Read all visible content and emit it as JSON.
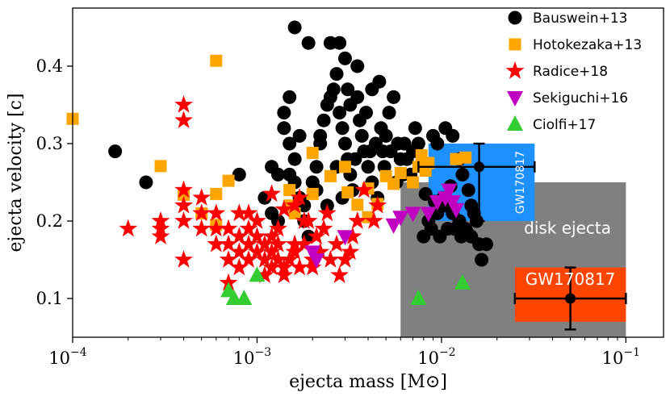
{
  "chart_data": {
    "type": "scatter",
    "title": "",
    "xlabel": "ejecta mass [M⊙]",
    "ylabel": "ejecta velocity [c]",
    "xscale": "log",
    "xlim": [
      0.0001,
      0.16
    ],
    "ylim": [
      0.05,
      0.475
    ],
    "x_ticks": [
      {
        "value": 0.0001,
        "base": "10",
        "exp": "−4"
      },
      {
        "value": 0.001,
        "base": "10",
        "exp": "−3"
      },
      {
        "value": 0.01,
        "base": "10",
        "exp": "−2"
      },
      {
        "value": 0.1,
        "base": "10",
        "exp": "−1"
      }
    ],
    "y_ticks": [
      {
        "value": 0.1,
        "label": "0.1"
      },
      {
        "value": 0.2,
        "label": "0.2"
      },
      {
        "value": 0.3,
        "label": "0.3"
      },
      {
        "value": 0.4,
        "label": "0.4"
      }
    ],
    "grid": false,
    "legend_position": "top-right",
    "regions": [
      {
        "label": "disk ejecta",
        "x0": 0.006,
        "x1": 0.1,
        "y0": 0.05,
        "y1": 0.25,
        "color": "#808080"
      },
      {
        "label": "GW170817",
        "x0": 0.0085,
        "x1": 0.032,
        "y0": 0.2,
        "y1": 0.3,
        "color": "#1e90ff",
        "label_rotated": true
      },
      {
        "label": "GW170817",
        "x0": 0.025,
        "x1": 0.1,
        "y0": 0.07,
        "y1": 0.14,
        "color": "#ff4500"
      }
    ],
    "error_points": [
      {
        "x": 0.016,
        "y": 0.27,
        "xerr": [
          0.0075,
          0.032
        ],
        "yerr": [
          0.2,
          0.3
        ]
      },
      {
        "x": 0.05,
        "y": 0.1,
        "xerr": [
          0.025,
          0.1
        ],
        "yerr": [
          0.06,
          0.14
        ]
      }
    ],
    "series": [
      {
        "name": "Bauswein+13",
        "marker": "circle",
        "color": "#000000",
        "points": [
          [
            0.00017,
            0.29
          ],
          [
            0.00025,
            0.25
          ],
          [
            0.0008,
            0.26
          ],
          [
            0.0012,
            0.27
          ],
          [
            0.0013,
            0.26
          ],
          [
            0.0015,
            0.26
          ],
          [
            0.0016,
            0.45
          ],
          [
            0.0014,
            0.34
          ],
          [
            0.0014,
            0.32
          ],
          [
            0.0015,
            0.36
          ],
          [
            0.0015,
            0.3
          ],
          [
            0.0016,
            0.28
          ],
          [
            0.0017,
            0.31
          ],
          [
            0.0019,
            0.43
          ],
          [
            0.0016,
            0.25
          ],
          [
            0.0017,
            0.23
          ],
          [
            0.0018,
            0.2
          ],
          [
            0.0019,
            0.18
          ],
          [
            0.0018,
            0.22
          ],
          [
            0.0011,
            0.23
          ],
          [
            0.0012,
            0.21
          ],
          [
            0.0013,
            0.2
          ],
          [
            0.002,
            0.25
          ],
          [
            0.0021,
            0.24
          ],
          [
            0.0022,
            0.3
          ],
          [
            0.0023,
            0.33
          ],
          [
            0.0024,
            0.35
          ],
          [
            0.0025,
            0.36
          ],
          [
            0.0025,
            0.43
          ],
          [
            0.0028,
            0.43
          ],
          [
            0.003,
            0.41
          ],
          [
            0.0027,
            0.39
          ],
          [
            0.0026,
            0.37
          ],
          [
            0.0028,
            0.34
          ],
          [
            0.0029,
            0.32
          ],
          [
            0.003,
            0.3
          ],
          [
            0.0031,
            0.28
          ],
          [
            0.0032,
            0.26
          ],
          [
            0.0033,
            0.24
          ],
          [
            0.0035,
            0.36
          ],
          [
            0.0036,
            0.33
          ],
          [
            0.0037,
            0.31
          ],
          [
            0.0038,
            0.29
          ],
          [
            0.004,
            0.27
          ],
          [
            0.0042,
            0.25
          ],
          [
            0.0045,
            0.23
          ],
          [
            0.0048,
            0.29
          ],
          [
            0.005,
            0.31
          ],
          [
            0.0052,
            0.34
          ],
          [
            0.0055,
            0.36
          ],
          [
            0.0058,
            0.3
          ],
          [
            0.006,
            0.28
          ],
          [
            0.0062,
            0.26
          ],
          [
            0.0065,
            0.28
          ],
          [
            0.007,
            0.29
          ],
          [
            0.0072,
            0.32
          ],
          [
            0.0075,
            0.3
          ],
          [
            0.0042,
            0.37
          ],
          [
            0.0046,
            0.38
          ],
          [
            0.0035,
            0.4
          ],
          [
            0.0044,
            0.3
          ],
          [
            0.0039,
            0.34
          ],
          [
            0.0053,
            0.29
          ],
          [
            0.0057,
            0.25
          ],
          [
            0.0049,
            0.27
          ],
          [
            0.0063,
            0.3
          ],
          [
            0.0068,
            0.26
          ],
          [
            0.0047,
            0.32
          ],
          [
            0.0034,
            0.28
          ],
          [
            0.0031,
            0.37
          ],
          [
            0.0027,
            0.27
          ],
          [
            0.0032,
            0.35
          ],
          [
            0.0041,
            0.29
          ],
          [
            0.0024,
            0.22
          ],
          [
            0.0029,
            0.23
          ],
          [
            0.0021,
            0.27
          ],
          [
            0.0022,
            0.31
          ],
          [
            0.009,
            0.31
          ],
          [
            0.0095,
            0.3
          ],
          [
            0.0105,
            0.32
          ],
          [
            0.0115,
            0.31
          ],
          [
            0.0125,
            0.28
          ],
          [
            0.013,
            0.26
          ],
          [
            0.014,
            0.24
          ],
          [
            0.0145,
            0.22
          ],
          [
            0.015,
            0.21
          ],
          [
            0.0155,
            0.2
          ],
          [
            0.0085,
            0.2
          ],
          [
            0.0095,
            0.21
          ],
          [
            0.0105,
            0.22
          ],
          [
            0.0115,
            0.21
          ],
          [
            0.0125,
            0.2
          ],
          [
            0.0135,
            0.19
          ],
          [
            0.0145,
            0.18
          ],
          [
            0.016,
            0.17
          ],
          [
            0.0165,
            0.15
          ],
          [
            0.0175,
            0.17
          ],
          [
            0.008,
            0.18
          ],
          [
            0.0088,
            0.19
          ],
          [
            0.0098,
            0.18
          ],
          [
            0.0108,
            0.19
          ],
          [
            0.0118,
            0.19
          ],
          [
            0.0128,
            0.18
          ],
          [
            0.0138,
            0.185
          ],
          [
            0.0102,
            0.23
          ],
          [
            0.0112,
            0.245
          ],
          [
            0.0092,
            0.225
          ],
          [
            0.0082,
            0.235
          ]
        ]
      },
      {
        "name": "Hotokezaka+13",
        "marker": "square",
        "color": "#ffa500",
        "points": [
          [
            0.0001,
            0.332
          ],
          [
            0.0003,
            0.271
          ],
          [
            0.0004,
            0.234
          ],
          [
            0.0005,
            0.21
          ],
          [
            0.0006,
            0.235
          ],
          [
            0.0006,
            0.195
          ],
          [
            0.0007,
            0.252
          ],
          [
            0.0006,
            0.407
          ],
          [
            0.0015,
            0.24
          ],
          [
            0.0015,
            0.22
          ],
          [
            0.0016,
            0.21
          ],
          [
            0.002,
            0.235
          ],
          [
            0.002,
            0.288
          ],
          [
            0.0025,
            0.258
          ],
          [
            0.003,
            0.27
          ],
          [
            0.0031,
            0.237
          ],
          [
            0.0035,
            0.221
          ],
          [
            0.004,
            0.205
          ],
          [
            0.004,
            0.242
          ],
          [
            0.0045,
            0.222
          ],
          [
            0.005,
            0.258
          ],
          [
            0.0055,
            0.248
          ],
          [
            0.006,
            0.262
          ],
          [
            0.007,
            0.25
          ],
          [
            0.0075,
            0.27
          ],
          [
            0.0078,
            0.285
          ],
          [
            0.0082,
            0.265
          ],
          [
            0.0085,
            0.275
          ],
          [
            0.012,
            0.28
          ],
          [
            0.0135,
            0.282
          ]
        ]
      },
      {
        "name": "Radice+18",
        "marker": "star",
        "color": "#ff0000",
        "points": [
          [
            0.0002,
            0.19
          ],
          [
            0.0003,
            0.2
          ],
          [
            0.0003,
            0.18
          ],
          [
            0.0003,
            0.19
          ],
          [
            0.0004,
            0.35
          ],
          [
            0.0004,
            0.33
          ],
          [
            0.0004,
            0.24
          ],
          [
            0.0004,
            0.22
          ],
          [
            0.0004,
            0.2
          ],
          [
            0.0004,
            0.15
          ],
          [
            0.0005,
            0.23
          ],
          [
            0.0005,
            0.21
          ],
          [
            0.0005,
            0.19
          ],
          [
            0.0006,
            0.21
          ],
          [
            0.0006,
            0.19
          ],
          [
            0.0006,
            0.17
          ],
          [
            0.0007,
            0.17
          ],
          [
            0.0007,
            0.15
          ],
          [
            0.0007,
            0.12
          ],
          [
            0.0008,
            0.14
          ],
          [
            0.0008,
            0.18
          ],
          [
            0.0008,
            0.16
          ],
          [
            0.0009,
            0.17
          ],
          [
            0.0009,
            0.19
          ],
          [
            0.0009,
            0.15
          ],
          [
            0.001,
            0.2
          ],
          [
            0.001,
            0.18
          ],
          [
            0.001,
            0.16
          ],
          [
            0.0011,
            0.17
          ],
          [
            0.0011,
            0.15
          ],
          [
            0.0011,
            0.13
          ],
          [
            0.0012,
            0.18
          ],
          [
            0.0012,
            0.16
          ],
          [
            0.0012,
            0.14
          ],
          [
            0.0013,
            0.19
          ],
          [
            0.0013,
            0.17
          ],
          [
            0.0013,
            0.15
          ],
          [
            0.0014,
            0.14
          ],
          [
            0.0014,
            0.13
          ],
          [
            0.0015,
            0.15
          ],
          [
            0.0016,
            0.17
          ],
          [
            0.0016,
            0.16
          ],
          [
            0.0017,
            0.14
          ],
          [
            0.0018,
            0.2
          ],
          [
            0.0018,
            0.17
          ],
          [
            0.002,
            0.15
          ],
          [
            0.002,
            0.14
          ],
          [
            0.0022,
            0.16
          ],
          [
            0.0024,
            0.21
          ],
          [
            0.0025,
            0.15
          ],
          [
            0.0027,
            0.17
          ],
          [
            0.0028,
            0.13
          ],
          [
            0.003,
            0.15
          ],
          [
            0.0032,
            0.16
          ],
          [
            0.0035,
            0.2
          ],
          [
            0.0038,
            0.24
          ],
          [
            0.0045,
            0.22
          ],
          [
            0.0012,
            0.235
          ],
          [
            0.0014,
            0.215
          ],
          [
            0.0016,
            0.22
          ],
          [
            0.0017,
            0.23
          ],
          [
            0.0019,
            0.2
          ],
          [
            0.0021,
            0.18
          ],
          [
            0.0023,
            0.19
          ],
          [
            0.0033,
            0.18
          ],
          [
            0.0043,
            0.2
          ],
          [
            0.0008,
            0.21
          ],
          [
            0.0009,
            0.21
          ],
          [
            0.0007,
            0.19
          ]
        ]
      },
      {
        "name": "Sekiguchi+16",
        "marker": "triangle-down",
        "color": "#c000c0",
        "points": [
          [
            0.002,
            0.16
          ],
          [
            0.0021,
            0.15
          ],
          [
            0.003,
            0.18
          ],
          [
            0.0055,
            0.195
          ],
          [
            0.006,
            0.205
          ],
          [
            0.007,
            0.21
          ],
          [
            0.0085,
            0.21
          ],
          [
            0.0095,
            0.225
          ],
          [
            0.0105,
            0.23
          ],
          [
            0.011,
            0.24
          ],
          [
            0.0115,
            0.225
          ],
          [
            0.012,
            0.215
          ]
        ]
      },
      {
        "name": "Ciolfi+17",
        "marker": "triangle-up",
        "color": "#33cc33",
        "points": [
          [
            0.0007,
            0.11
          ],
          [
            0.00075,
            0.1
          ],
          [
            0.00085,
            0.1
          ],
          [
            0.001,
            0.13
          ],
          [
            0.0075,
            0.1
          ],
          [
            0.013,
            0.12
          ]
        ]
      }
    ]
  }
}
